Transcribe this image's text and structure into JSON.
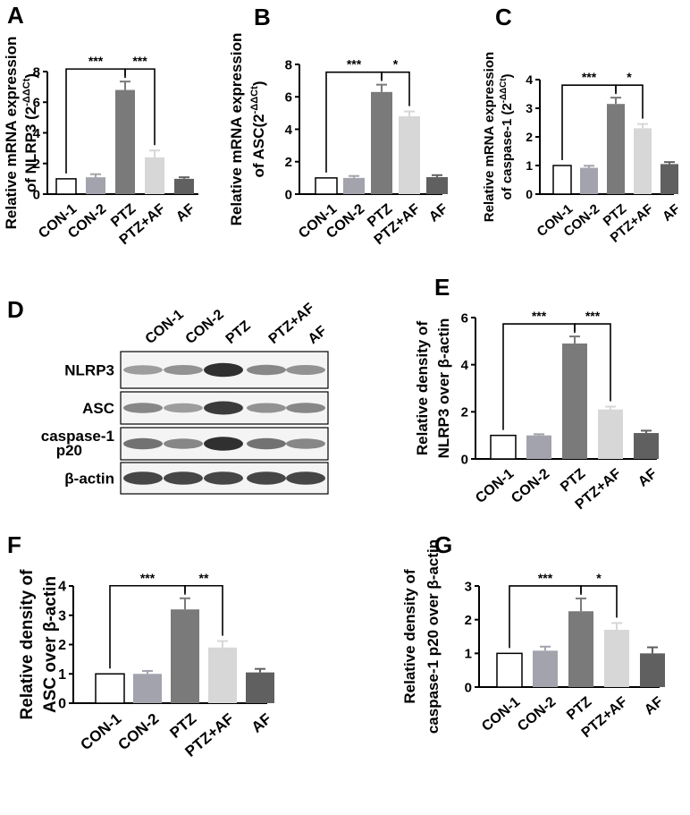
{
  "colors": [
    "#ffffff",
    "#a3a3ad",
    "#7a7a7a",
    "#d7d7d7",
    "#606060"
  ],
  "chart_data": [
    {
      "panel": "A",
      "type": "bar",
      "categories": [
        "CON-1",
        "CON-2",
        "PTZ",
        "PTZ+AF",
        "AF"
      ],
      "values": [
        1.0,
        1.1,
        6.8,
        2.4,
        1.0
      ],
      "errors": [
        0.0,
        0.2,
        0.55,
        0.45,
        0.1
      ],
      "ylabel": [
        "Relative mRNA expression",
        "of NLRP3 (2",
        "-ΔΔCt",
        ")"
      ],
      "ylim": [
        0,
        8
      ],
      "yticks": [
        0,
        2,
        4,
        6,
        8
      ],
      "significance": [
        {
          "from": 0,
          "to": 2,
          "label": "***"
        },
        {
          "from": 2,
          "to": 3,
          "label": "***"
        }
      ]
    },
    {
      "panel": "B",
      "type": "bar",
      "categories": [
        "CON-1",
        "CON-2",
        "PTZ",
        "PTZ+AF",
        "AF"
      ],
      "values": [
        1.0,
        1.0,
        6.3,
        4.8,
        1.05
      ],
      "errors": [
        0.0,
        0.12,
        0.45,
        0.3,
        0.12
      ],
      "ylabel": [
        "Relative mRNA expression",
        "of ASC(2",
        "-ΔΔCt",
        ")"
      ],
      "ylim": [
        0,
        8
      ],
      "yticks": [
        0,
        2,
        4,
        6,
        8
      ],
      "significance": [
        {
          "from": 0,
          "to": 2,
          "label": "***"
        },
        {
          "from": 2,
          "to": 3,
          "label": "*"
        }
      ]
    },
    {
      "panel": "C",
      "type": "bar",
      "categories": [
        "CON-1",
        "CON-2",
        "PTZ",
        "PTZ+AF",
        "AF"
      ],
      "values": [
        1.0,
        0.92,
        3.15,
        2.3,
        1.05
      ],
      "errors": [
        0.0,
        0.07,
        0.22,
        0.15,
        0.07
      ],
      "ylabel": [
        "Relative mRNA expression",
        "of caspase-1 (2",
        "-ΔΔCt",
        ")"
      ],
      "ylim": [
        0,
        4
      ],
      "yticks": [
        0,
        1,
        2,
        3,
        4
      ],
      "significance": [
        {
          "from": 0,
          "to": 2,
          "label": "***"
        },
        {
          "from": 2,
          "to": 3,
          "label": "*"
        }
      ]
    },
    {
      "panel": "E",
      "type": "bar",
      "categories": [
        "CON-1",
        "CON-2",
        "PTZ",
        "PTZ+AF",
        "AF"
      ],
      "values": [
        1.0,
        1.0,
        4.9,
        2.1,
        1.1
      ],
      "errors": [
        0.0,
        0.05,
        0.3,
        0.12,
        0.1
      ],
      "ylabel": [
        "Relative density of",
        "NLRP3 over β-actin"
      ],
      "ylim": [
        0,
        6
      ],
      "yticks": [
        0,
        2,
        4,
        6
      ],
      "significance": [
        {
          "from": 0,
          "to": 2,
          "label": "***"
        },
        {
          "from": 2,
          "to": 3,
          "label": "***"
        }
      ]
    },
    {
      "panel": "F",
      "type": "bar",
      "categories": [
        "CON-1",
        "CON-2",
        "PTZ",
        "PTZ+AF",
        "AF"
      ],
      "values": [
        1.0,
        1.0,
        3.2,
        1.9,
        1.05
      ],
      "errors": [
        0.0,
        0.1,
        0.38,
        0.22,
        0.12
      ],
      "ylabel": [
        "Relative density of",
        "ASC over β-actin"
      ],
      "ylim": [
        0,
        4
      ],
      "yticks": [
        0,
        1,
        2,
        3,
        4
      ],
      "significance": [
        {
          "from": 0,
          "to": 2,
          "label": "***"
        },
        {
          "from": 2,
          "to": 3,
          "label": "**"
        }
      ]
    },
    {
      "panel": "G",
      "type": "bar",
      "categories": [
        "CON-1",
        "CON-2",
        "PTZ",
        "PTZ+AF",
        "AF"
      ],
      "values": [
        1.0,
        1.08,
        2.25,
        1.7,
        1.0
      ],
      "errors": [
        0.0,
        0.12,
        0.38,
        0.2,
        0.18
      ],
      "ylabel": [
        "Relative density of",
        "caspase-1 p20 over β-actin"
      ],
      "ylim": [
        0,
        3
      ],
      "yticks": [
        0,
        1,
        2,
        3
      ],
      "significance": [
        {
          "from": 0,
          "to": 2,
          "label": "***"
        },
        {
          "from": 2,
          "to": 3,
          "label": "*"
        }
      ]
    }
  ],
  "blot": {
    "panel": "D",
    "lanes": [
      "CON-1",
      "CON-2",
      "PTZ",
      "PTZ+AF",
      "AF"
    ],
    "rows": [
      {
        "label": [
          "NLRP3"
        ],
        "intensity": [
          0.45,
          0.5,
          0.95,
          0.55,
          0.5
        ]
      },
      {
        "label": [
          "ASC"
        ],
        "intensity": [
          0.55,
          0.45,
          0.9,
          0.5,
          0.55
        ]
      },
      {
        "label": [
          "caspase-1",
          "p20"
        ],
        "intensity": [
          0.65,
          0.55,
          0.95,
          0.65,
          0.55
        ]
      },
      {
        "label": [
          "β-actin"
        ],
        "intensity": [
          0.85,
          0.85,
          0.85,
          0.85,
          0.85
        ]
      }
    ]
  }
}
